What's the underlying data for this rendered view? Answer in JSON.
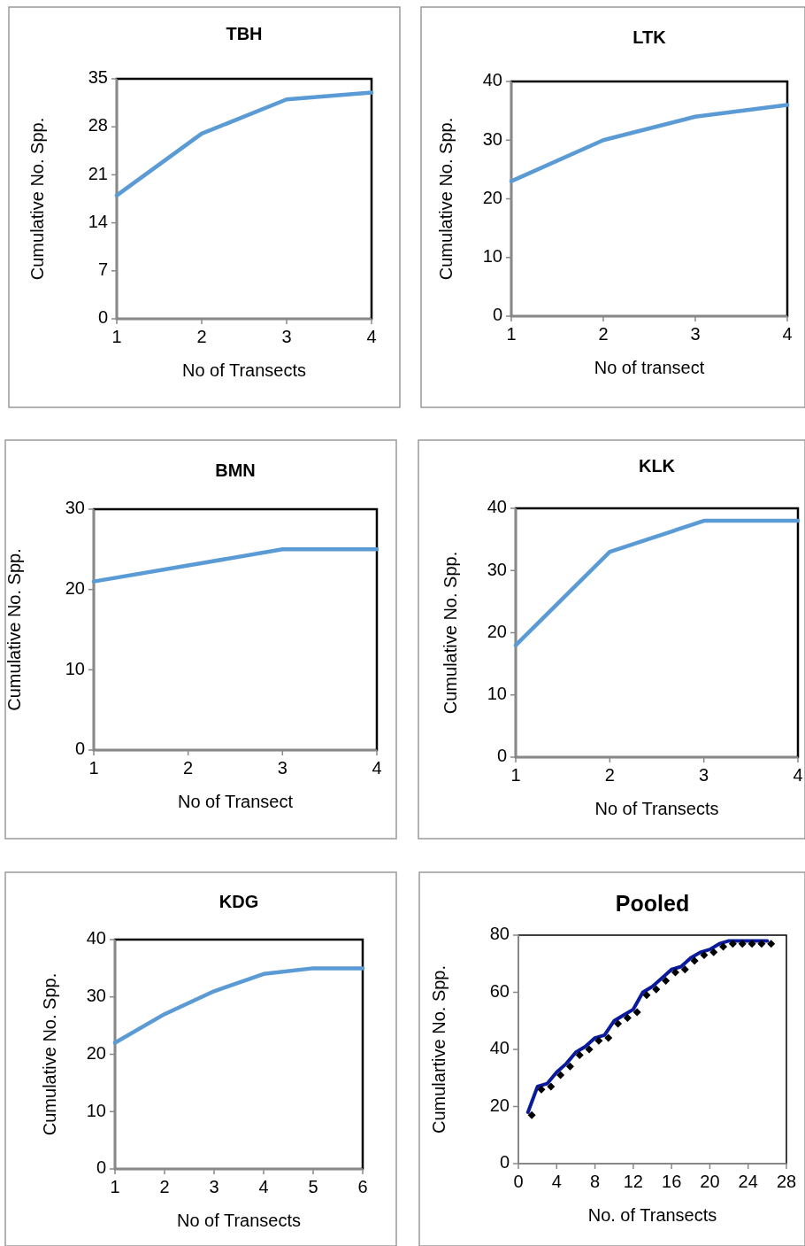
{
  "chart_data": [
    {
      "type": "line",
      "title": "TBH",
      "xlabel": "No of Transects",
      "ylabel": "Cumulative No. Spp.",
      "x": [
        1,
        2,
        3,
        4
      ],
      "xlim": [
        1,
        4
      ],
      "xticks": [
        1,
        2,
        3,
        4
      ],
      "ylim": [
        0,
        35
      ],
      "yticks": [
        0,
        7,
        14,
        21,
        28,
        35
      ],
      "series": [
        {
          "color": "#5b9bd5",
          "values": [
            18,
            27,
            32,
            33
          ]
        }
      ]
    },
    {
      "type": "line",
      "title": "LTK",
      "xlabel": "No of transect",
      "ylabel": "Cumulative No. Spp.",
      "x": [
        1,
        2,
        3,
        4
      ],
      "xlim": [
        1,
        4
      ],
      "xticks": [
        1,
        2,
        3,
        4
      ],
      "ylim": [
        0,
        40
      ],
      "yticks": [
        0,
        10,
        20,
        30,
        40
      ],
      "series": [
        {
          "color": "#5b9bd5",
          "values": [
            23,
            30,
            34,
            36
          ]
        }
      ]
    },
    {
      "type": "line",
      "title": "BMN",
      "xlabel": "No of Transect",
      "ylabel": "Cumulative No. Spp.",
      "x": [
        1,
        2,
        3,
        4
      ],
      "xlim": [
        1,
        4
      ],
      "xticks": [
        1,
        2,
        3,
        4
      ],
      "ylim": [
        0,
        30
      ],
      "yticks": [
        0,
        10,
        20,
        30
      ],
      "series": [
        {
          "color": "#5b9bd5",
          "values": [
            21,
            23,
            25,
            25
          ]
        }
      ]
    },
    {
      "type": "line",
      "title": "KLK",
      "xlabel": "No of Transects",
      "ylabel": "Cumulative No. Spp.",
      "x": [
        1,
        2,
        3,
        4
      ],
      "xlim": [
        1,
        4
      ],
      "xticks": [
        1,
        2,
        3,
        4
      ],
      "ylim": [
        0,
        40
      ],
      "yticks": [
        0,
        10,
        20,
        30,
        40
      ],
      "series": [
        {
          "color": "#5b9bd5",
          "values": [
            18,
            33,
            38,
            38
          ]
        }
      ]
    },
    {
      "type": "line",
      "title": "KDG",
      "xlabel": "No of Transects",
      "ylabel": "Cumulative No. Spp.",
      "x": [
        1,
        2,
        3,
        4,
        5,
        6
      ],
      "xlim": [
        1,
        6
      ],
      "xticks": [
        1,
        2,
        3,
        4,
        5,
        6
      ],
      "ylim": [
        0,
        40
      ],
      "yticks": [
        0,
        10,
        20,
        30,
        40
      ],
      "series": [
        {
          "color": "#5b9bd5",
          "values": [
            22,
            27,
            31,
            34,
            35,
            35
          ]
        }
      ]
    },
    {
      "type": "line",
      "title": "Pooled",
      "xlabel": "No. of Transects",
      "ylabel": "Cumulartive No. Spp.",
      "xlim": [
        0,
        28
      ],
      "xticks": [
        0,
        4,
        8,
        12,
        16,
        20,
        24,
        28
      ],
      "ylim": [
        0,
        80
      ],
      "yticks": [
        0,
        20,
        40,
        60,
        80
      ],
      "series": [
        {
          "color": "#0a1a9c",
          "x": [
            1,
            2,
            3,
            4,
            5,
            6,
            7,
            8,
            9,
            10,
            11,
            12,
            13,
            14,
            15,
            16,
            17,
            18,
            19,
            20,
            21,
            22,
            23,
            24,
            25,
            26
          ],
          "values": [
            18,
            27,
            28,
            32,
            35,
            39,
            41,
            44,
            45,
            50,
            52,
            54,
            60,
            62,
            65,
            68,
            69,
            72,
            74,
            75,
            77,
            78,
            78,
            78,
            78,
            78
          ]
        },
        {
          "type": "scatter",
          "marker": "diamond",
          "color": "#000000",
          "x": [
            1.4,
            2.4,
            3.4,
            4.4,
            5.4,
            6.4,
            7.4,
            8.4,
            9.4,
            10.4,
            11.4,
            12.4,
            13.4,
            14.4,
            15.4,
            16.4,
            17.4,
            18.4,
            19.4,
            20.4,
            21.4,
            22.4,
            23.4,
            24.4,
            25.4,
            26.4
          ],
          "values": [
            17,
            26,
            27,
            31,
            34,
            38,
            40,
            43,
            44,
            49,
            51,
            53,
            59,
            61,
            64,
            67,
            68,
            71,
            73,
            74,
            76,
            77,
            77,
            77,
            77,
            77
          ]
        }
      ]
    }
  ]
}
